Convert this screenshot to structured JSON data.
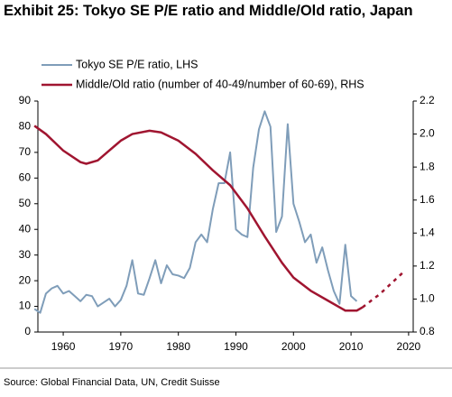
{
  "chart_data": {
    "type": "line",
    "title": "Exhibit 25: Tokyo SE P/E ratio and Middle/Old ratio, Japan",
    "source": "Source: Global Financial Data, UN, Credit Suisse",
    "xlim": [
      1955.6,
      2020.8
    ],
    "xticks": [
      1960,
      1970,
      1980,
      1990,
      2000,
      2010,
      2020
    ],
    "ylim": [
      0,
      90
    ],
    "yticks": [
      0,
      10,
      20,
      30,
      40,
      50,
      60,
      70,
      80,
      90
    ],
    "y2lim": [
      0.8,
      2.2
    ],
    "y2ticks": [
      {
        "value": 0.8,
        "label": "0.8"
      },
      {
        "value": 1.0,
        "label": "1.0"
      },
      {
        "value": 1.2,
        "label": "1.2"
      },
      {
        "value": 1.4,
        "label": "1.4"
      },
      {
        "value": 1.6,
        "label": "1.6"
      },
      {
        "value": 1.8,
        "label": "1.8"
      },
      {
        "value": 2.0,
        "label": "2.0"
      },
      {
        "value": 2.2,
        "label": "2.2"
      }
    ],
    "grid": false,
    "series": [
      {
        "name": "Tokyo SE P/E ratio, LHS",
        "color": "#7f9db9",
        "axis": "y",
        "x": [
          1955,
          1956,
          1957,
          1958,
          1959,
          1960,
          1961,
          1962,
          1963,
          1964,
          1965,
          1966,
          1967,
          1968,
          1969,
          1970,
          1971,
          1972,
          1973,
          1974,
          1975,
          1976,
          1977,
          1978,
          1979,
          1980,
          1981,
          1982,
          1983,
          1984,
          1985,
          1986,
          1987,
          1988,
          1989,
          1990,
          1991,
          1992,
          1993,
          1994,
          1995,
          1996,
          1997,
          1998,
          1999,
          2000,
          2001,
          2002,
          2003,
          2004,
          2005,
          2006,
          2007,
          2008,
          2009,
          2010,
          2011
        ],
        "values": [
          9,
          7.5,
          15,
          17,
          18,
          15,
          16,
          14,
          12,
          14.5,
          14,
          10,
          11.5,
          13,
          10,
          12.5,
          18,
          28,
          15,
          14.5,
          21,
          28,
          19,
          26,
          22.5,
          22,
          21,
          25,
          35,
          38,
          35,
          48,
          58,
          58,
          70,
          40,
          38,
          37,
          64,
          79,
          86,
          80,
          39,
          45,
          81,
          50,
          43,
          35,
          38,
          27,
          33,
          24,
          16,
          11,
          34,
          14,
          12
        ]
      },
      {
        "name": "Middle/Old ratio (number of 40-49/number of 60-69), RHS",
        "color": "#a01530",
        "axis": "y2",
        "x": [
          1955,
          1957,
          1960,
          1963,
          1964,
          1966,
          1968,
          1970,
          1972,
          1975,
          1977,
          1980,
          1983,
          1986,
          1989,
          1992,
          1995,
          1998,
          2000,
          2003,
          2006,
          2008,
          2009,
          2011,
          2012
        ],
        "values": [
          2.05,
          2.0,
          1.9,
          1.83,
          1.82,
          1.84,
          1.9,
          1.96,
          2.0,
          2.02,
          2.01,
          1.96,
          1.88,
          1.78,
          1.69,
          1.55,
          1.38,
          1.22,
          1.13,
          1.05,
          0.99,
          0.95,
          0.93,
          0.93,
          0.95
        ]
      },
      {
        "color": "#a01530",
        "axis": "y2",
        "dashed": true,
        "x": [
          2012,
          2015,
          2019
        ],
        "values": [
          0.95,
          1.03,
          1.16
        ]
      }
    ]
  }
}
